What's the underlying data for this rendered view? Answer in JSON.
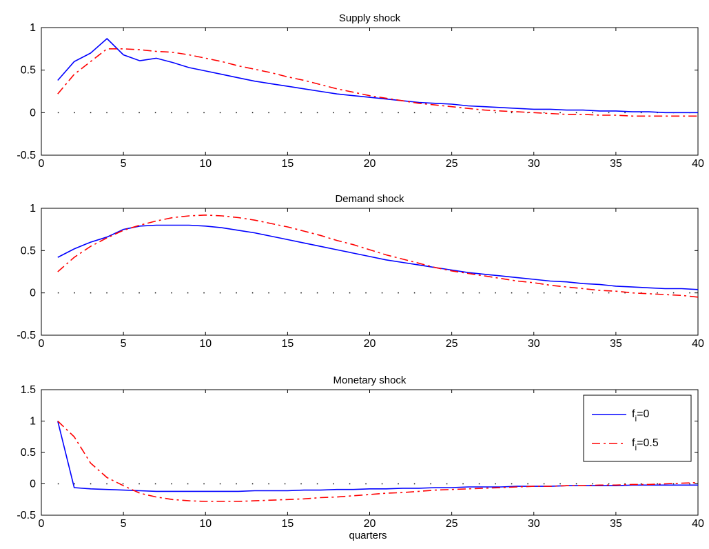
{
  "figure": {
    "xlabel": "quarters"
  },
  "colors": {
    "f0": "#0000ff",
    "f05": "#ff0000",
    "axis": "#000000",
    "zero": "#000000"
  },
  "legend": {
    "placement": "top-right",
    "entries": [
      {
        "base": "f",
        "sub": "i",
        "suffix": "=0"
      },
      {
        "base": "f",
        "sub": "i",
        "suffix": "=0.5"
      }
    ]
  },
  "chart_data": [
    {
      "type": "line",
      "title": "Supply shock",
      "xlim": [
        0,
        40
      ],
      "ylim": [
        -0.5,
        1
      ],
      "xticks": [
        "0",
        "5",
        "10",
        "15",
        "20",
        "25",
        "30",
        "35",
        "40"
      ],
      "yticks": [
        "-0.5",
        "0",
        "0.5",
        "1"
      ],
      "grid": false,
      "x": [
        1,
        2,
        3,
        4,
        5,
        6,
        7,
        8,
        9,
        10,
        11,
        12,
        13,
        14,
        15,
        16,
        17,
        18,
        19,
        20,
        21,
        22,
        23,
        24,
        25,
        26,
        27,
        28,
        29,
        30,
        31,
        32,
        33,
        34,
        35,
        36,
        37,
        38,
        39,
        40
      ],
      "series": [
        {
          "name": "f_i=0",
          "values": [
            0.38,
            0.6,
            0.7,
            0.87,
            0.68,
            0.61,
            0.64,
            0.59,
            0.53,
            0.49,
            0.45,
            0.41,
            0.37,
            0.34,
            0.31,
            0.28,
            0.25,
            0.22,
            0.2,
            0.18,
            0.16,
            0.14,
            0.12,
            0.11,
            0.1,
            0.08,
            0.07,
            0.06,
            0.05,
            0.04,
            0.04,
            0.03,
            0.03,
            0.02,
            0.02,
            0.01,
            0.01,
            0.0,
            0.0,
            0.0
          ]
        },
        {
          "name": "f_i=0.5",
          "values": [
            0.22,
            0.45,
            0.6,
            0.75,
            0.75,
            0.74,
            0.72,
            0.71,
            0.68,
            0.64,
            0.6,
            0.55,
            0.51,
            0.47,
            0.42,
            0.38,
            0.33,
            0.28,
            0.24,
            0.2,
            0.17,
            0.14,
            0.11,
            0.09,
            0.07,
            0.05,
            0.03,
            0.02,
            0.01,
            0.0,
            -0.01,
            -0.02,
            -0.02,
            -0.03,
            -0.03,
            -0.04,
            -0.04,
            -0.04,
            -0.04,
            -0.04
          ]
        }
      ]
    },
    {
      "type": "line",
      "title": "Demand shock",
      "xlim": [
        0,
        40
      ],
      "ylim": [
        -0.5,
        1
      ],
      "xticks": [
        "0",
        "5",
        "10",
        "15",
        "20",
        "25",
        "30",
        "35",
        "40"
      ],
      "yticks": [
        "-0.5",
        "0",
        "0.5",
        "1"
      ],
      "grid": false,
      "x": [
        1,
        2,
        3,
        4,
        5,
        6,
        7,
        8,
        9,
        10,
        11,
        12,
        13,
        14,
        15,
        16,
        17,
        18,
        19,
        20,
        21,
        22,
        23,
        24,
        25,
        26,
        27,
        28,
        29,
        30,
        31,
        32,
        33,
        34,
        35,
        36,
        37,
        38,
        39,
        40
      ],
      "series": [
        {
          "name": "f_i=0",
          "values": [
            0.42,
            0.52,
            0.6,
            0.66,
            0.75,
            0.79,
            0.8,
            0.8,
            0.8,
            0.79,
            0.77,
            0.74,
            0.71,
            0.67,
            0.63,
            0.59,
            0.55,
            0.51,
            0.47,
            0.43,
            0.39,
            0.36,
            0.33,
            0.3,
            0.27,
            0.24,
            0.22,
            0.2,
            0.18,
            0.16,
            0.14,
            0.13,
            0.11,
            0.1,
            0.08,
            0.07,
            0.06,
            0.05,
            0.05,
            0.04
          ]
        },
        {
          "name": "f_i=0.5",
          "values": [
            0.25,
            0.42,
            0.55,
            0.65,
            0.74,
            0.8,
            0.85,
            0.89,
            0.91,
            0.92,
            0.91,
            0.89,
            0.86,
            0.82,
            0.78,
            0.73,
            0.68,
            0.62,
            0.57,
            0.51,
            0.45,
            0.4,
            0.35,
            0.3,
            0.26,
            0.23,
            0.2,
            0.17,
            0.14,
            0.12,
            0.09,
            0.07,
            0.05,
            0.03,
            0.02,
            0.0,
            -0.01,
            -0.02,
            -0.03,
            -0.05
          ]
        }
      ]
    },
    {
      "type": "line",
      "title": "Monetary shock",
      "xlim": [
        0,
        40
      ],
      "ylim": [
        -0.5,
        1.5
      ],
      "xticks": [
        "0",
        "5",
        "10",
        "15",
        "20",
        "25",
        "30",
        "35",
        "40"
      ],
      "yticks": [
        "-0.5",
        "0",
        "0.5",
        "1",
        "1.5"
      ],
      "grid": false,
      "xlabel": "quarters",
      "legend": true,
      "x": [
        1,
        2,
        3,
        4,
        5,
        6,
        7,
        8,
        9,
        10,
        11,
        12,
        13,
        14,
        15,
        16,
        17,
        18,
        19,
        20,
        21,
        22,
        23,
        24,
        25,
        26,
        27,
        28,
        29,
        30,
        31,
        32,
        33,
        34,
        35,
        36,
        37,
        38,
        39,
        40
      ],
      "series": [
        {
          "name": "f_i=0",
          "values": [
            1.0,
            -0.06,
            -0.08,
            -0.09,
            -0.1,
            -0.11,
            -0.12,
            -0.12,
            -0.12,
            -0.12,
            -0.12,
            -0.12,
            -0.11,
            -0.11,
            -0.11,
            -0.1,
            -0.1,
            -0.09,
            -0.09,
            -0.08,
            -0.08,
            -0.07,
            -0.07,
            -0.06,
            -0.06,
            -0.05,
            -0.05,
            -0.05,
            -0.04,
            -0.04,
            -0.04,
            -0.03,
            -0.03,
            -0.03,
            -0.03,
            -0.02,
            -0.02,
            -0.02,
            -0.02,
            -0.02
          ]
        },
        {
          "name": "f_i=0.5",
          "values": [
            1.0,
            0.75,
            0.33,
            0.1,
            -0.03,
            -0.15,
            -0.21,
            -0.25,
            -0.27,
            -0.28,
            -0.28,
            -0.28,
            -0.27,
            -0.26,
            -0.25,
            -0.24,
            -0.22,
            -0.21,
            -0.19,
            -0.17,
            -0.15,
            -0.14,
            -0.12,
            -0.1,
            -0.09,
            -0.08,
            -0.07,
            -0.06,
            -0.05,
            -0.04,
            -0.04,
            -0.03,
            -0.03,
            -0.02,
            -0.02,
            -0.01,
            -0.01,
            0.0,
            0.01,
            0.02
          ]
        }
      ]
    }
  ]
}
